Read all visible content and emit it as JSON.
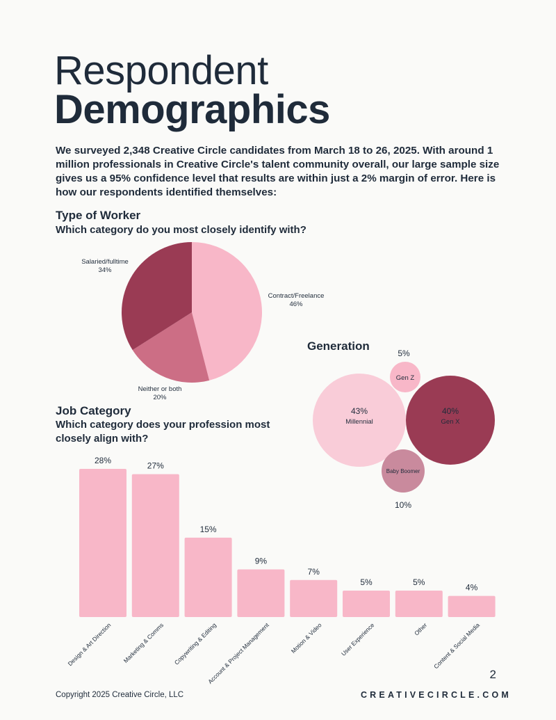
{
  "header": {
    "title_line1": "Respondent",
    "title_line2": "Demographics"
  },
  "intro": "We surveyed 2,348 Creative Circle candidates from March 18 to 26, 2025. With around 1 million professionals in Creative Circle's talent community overall, our large sample size gives us a 95% confidence level that results are within just a 2% margin of error. Here is how our respondents identified themselves:",
  "worker_section": {
    "heading": "Type of Worker",
    "question": "Which category do you most closely identify with?"
  },
  "generation_section": {
    "heading": "Generation"
  },
  "job_section": {
    "heading": "Job Category",
    "question": "Which category does your profession most closely align with?"
  },
  "chart_data": [
    {
      "type": "pie",
      "title": "Type of Worker",
      "slices": [
        {
          "label": "Contract/Freelance",
          "value": 46,
          "color": "#f8b7c8"
        },
        {
          "label": "Neither or both",
          "value": 20,
          "color": "#cc6e85"
        },
        {
          "label": "Salaried/fulltime",
          "value": 34,
          "color": "#9a3b54"
        }
      ]
    },
    {
      "type": "bubble",
      "title": "Generation",
      "items": [
        {
          "label": "Millennial",
          "value": 43,
          "color": "#f9ccd8",
          "text_color": "#1f2b3a"
        },
        {
          "label": "Gen X",
          "value": 40,
          "color": "#9a3b54",
          "text_color": "#1f2b3a"
        },
        {
          "label": "Baby Boomer",
          "value": 10,
          "color": "#c98a9d",
          "text_color": "#1f2b3a"
        },
        {
          "label": "Gen Z",
          "value": 5,
          "color": "#f8b7c8",
          "text_color": "#1f2b3a"
        }
      ]
    },
    {
      "type": "bar",
      "title": "Job Category",
      "categories": [
        "Design & Art Direction",
        "Marketing & Comms",
        "Copywriting & Editing",
        "Account & Project Management",
        "Motion & Video",
        "User Experience",
        "Other",
        "Content & Social Media"
      ],
      "values": [
        28,
        27,
        15,
        9,
        7,
        5,
        5,
        4
      ],
      "color": "#f8b7c8"
    }
  ],
  "footer": {
    "copyright": "Copyright 2025 Creative Circle, LLC",
    "brand": "CREATIVECIRCLE.COM",
    "page_number": "2"
  }
}
